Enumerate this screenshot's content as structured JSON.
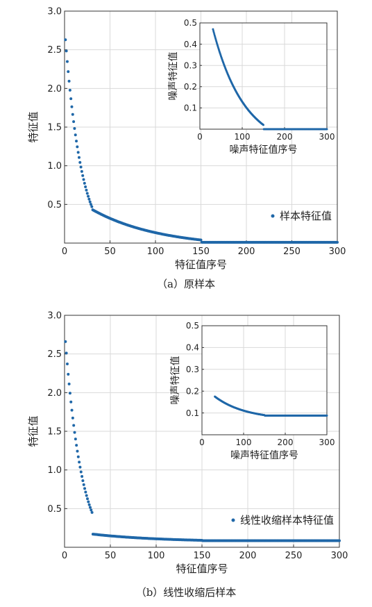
{
  "figure": {
    "caption_a": "（a）原样本",
    "caption_b": "（b）线性收缩后样本"
  },
  "colors": {
    "marker": "#1f67a8",
    "grid": "#d9d9d9",
    "axis": "#333333"
  },
  "chart_data": [
    {
      "id": "panel_a_main",
      "type": "scatter",
      "xlabel": "特征值序号",
      "ylabel": "特征值",
      "xlim": [
        0,
        300
      ],
      "ylim": [
        0,
        3.0
      ],
      "xticks": [
        "0",
        "50",
        "100",
        "150",
        "200",
        "250",
        "300"
      ],
      "yticks": [
        "0.5",
        "1.0",
        "1.5",
        "2.0",
        "2.5",
        "3.0"
      ],
      "grid": true,
      "legend": {
        "position": "lower-right",
        "label": "样本特征值"
      },
      "series": [
        {
          "name": "样本特征值",
          "segments": [
            {
              "x": [
                1,
                30
              ],
              "y": [
                2.63,
                0.47
              ],
              "shape": "decay"
            },
            {
              "x": [
                31,
                150
              ],
              "y": [
                0.43,
                0.04
              ],
              "shape": "decay"
            },
            {
              "x": [
                151,
                300
              ],
              "y": [
                0.01,
                0.01
              ],
              "shape": "flat"
            }
          ]
        }
      ]
    },
    {
      "id": "panel_a_inset",
      "type": "scatter",
      "xlabel": "噪声特征值序号",
      "ylabel": "噪声特征值",
      "xlim": [
        0,
        300
      ],
      "ylim": [
        0,
        0.5
      ],
      "xticks": [
        "0",
        "100",
        "200",
        "300"
      ],
      "yticks": [
        "0.1",
        "0.2",
        "0.3",
        "0.4",
        "0.5"
      ],
      "grid": true,
      "series": [
        {
          "segments": [
            {
              "x": [
                31,
                150
              ],
              "y": [
                0.47,
                0.02
              ],
              "shape": "decay"
            },
            {
              "x": [
                151,
                300
              ],
              "y": [
                0.0,
                0.0
              ],
              "shape": "flat"
            }
          ]
        }
      ]
    },
    {
      "id": "panel_b_main",
      "type": "scatter",
      "xlabel": "特征值序号",
      "ylabel": "特征值",
      "xlim": [
        0,
        300
      ],
      "ylim": [
        0,
        3.0
      ],
      "xticks": [
        "0",
        "50",
        "100",
        "150",
        "200",
        "250",
        "300"
      ],
      "yticks": [
        "0.5",
        "1.0",
        "1.5",
        "2.0",
        "2.5",
        "3.0"
      ],
      "grid": true,
      "legend": {
        "position": "lower-right",
        "label": "线性收缩样本特征值"
      },
      "series": [
        {
          "name": "线性收缩样本特征值",
          "segments": [
            {
              "x": [
                1,
                30
              ],
              "y": [
                2.66,
                0.45
              ],
              "shape": "decay"
            },
            {
              "x": [
                31,
                150
              ],
              "y": [
                0.17,
                0.09
              ],
              "shape": "decay"
            },
            {
              "x": [
                151,
                300
              ],
              "y": [
                0.085,
                0.085
              ],
              "shape": "flat"
            }
          ]
        }
      ]
    },
    {
      "id": "panel_b_inset",
      "type": "scatter",
      "xlabel": "噪声特征值序号",
      "ylabel": "噪声特征值",
      "xlim": [
        0,
        300
      ],
      "ylim": [
        0,
        0.5
      ],
      "xticks": [
        "0",
        "100",
        "200",
        "300"
      ],
      "yticks": [
        "0.1",
        "0.2",
        "0.3",
        "0.4",
        "0.5"
      ],
      "grid": true,
      "series": [
        {
          "segments": [
            {
              "x": [
                31,
                150
              ],
              "y": [
                0.175,
                0.09
              ],
              "shape": "decay"
            },
            {
              "x": [
                151,
                300
              ],
              "y": [
                0.088,
                0.088
              ],
              "shape": "flat"
            }
          ]
        }
      ]
    }
  ]
}
